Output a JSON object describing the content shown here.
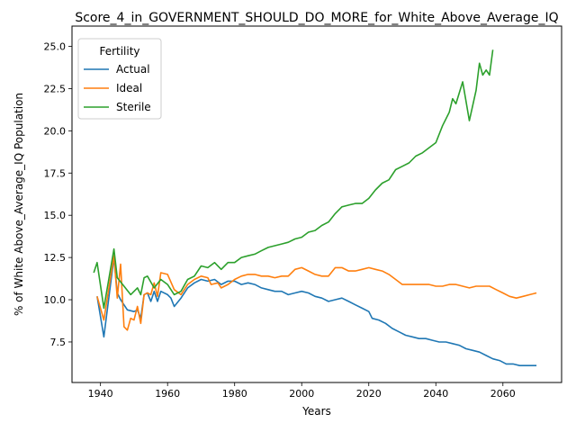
{
  "chart_data": {
    "type": "line",
    "title": "Score_4_in_GOVERNMENT_SHOULD_DO_MORE_for_White_Above_Average_IQ",
    "xlabel": "Years",
    "ylabel": "% of White Above_Average_IQ Population",
    "xlim": [
      1931.5,
      2077.5
    ],
    "ylim": [
      5.1,
      26.2
    ],
    "xticks": [
      1940,
      1960,
      1980,
      2000,
      2020,
      2040,
      2060
    ],
    "yticks": [
      7.5,
      10.0,
      12.5,
      15.0,
      17.5,
      20.0,
      22.5,
      25.0
    ],
    "xtick_labels": [
      "1940",
      "1960",
      "1980",
      "2000",
      "2020",
      "2040",
      "2060"
    ],
    "ytick_labels": [
      "7.5",
      "10.0",
      "12.5",
      "15.0",
      "17.5",
      "20.0",
      "22.5",
      "25.0"
    ],
    "grid": false,
    "legend": {
      "title": "Fertility",
      "placement": "upper-left"
    },
    "series": [
      {
        "name": "Actual",
        "color": "#1f77b4",
        "points": [
          [
            1939,
            10.2
          ],
          [
            1941,
            7.8
          ],
          [
            1944,
            12.5
          ],
          [
            1945,
            10.4
          ],
          [
            1946,
            10.0
          ],
          [
            1948,
            9.4
          ],
          [
            1950,
            9.3
          ],
          [
            1951,
            9.4
          ],
          [
            1952,
            8.9
          ],
          [
            1953,
            10.3
          ],
          [
            1954,
            10.4
          ],
          [
            1955,
            9.9
          ],
          [
            1956,
            10.5
          ],
          [
            1957,
            9.9
          ],
          [
            1958,
            10.5
          ],
          [
            1960,
            10.3
          ],
          [
            1961,
            10.1
          ],
          [
            1962,
            9.6
          ],
          [
            1964,
            10.1
          ],
          [
            1966,
            10.7
          ],
          [
            1968,
            11.0
          ],
          [
            1970,
            11.2
          ],
          [
            1972,
            11.1
          ],
          [
            1974,
            11.2
          ],
          [
            1976,
            10.9
          ],
          [
            1978,
            11.1
          ],
          [
            1980,
            11.1
          ],
          [
            1982,
            10.9
          ],
          [
            1984,
            11.0
          ],
          [
            1986,
            10.9
          ],
          [
            1988,
            10.7
          ],
          [
            1990,
            10.6
          ],
          [
            1992,
            10.5
          ],
          [
            1994,
            10.5
          ],
          [
            1996,
            10.3
          ],
          [
            1998,
            10.4
          ],
          [
            2000,
            10.5
          ],
          [
            2002,
            10.4
          ],
          [
            2004,
            10.2
          ],
          [
            2006,
            10.1
          ],
          [
            2008,
            9.9
          ],
          [
            2010,
            10.0
          ],
          [
            2012,
            10.1
          ],
          [
            2014,
            9.9
          ],
          [
            2016,
            9.7
          ],
          [
            2018,
            9.5
          ],
          [
            2020,
            9.3
          ],
          [
            2021,
            8.9
          ],
          [
            2023,
            8.8
          ],
          [
            2025,
            8.6
          ],
          [
            2027,
            8.3
          ],
          [
            2029,
            8.1
          ],
          [
            2031,
            7.9
          ],
          [
            2033,
            7.8
          ],
          [
            2035,
            7.7
          ],
          [
            2037,
            7.7
          ],
          [
            2039,
            7.6
          ],
          [
            2041,
            7.5
          ],
          [
            2043,
            7.5
          ],
          [
            2045,
            7.4
          ],
          [
            2047,
            7.3
          ],
          [
            2049,
            7.1
          ],
          [
            2051,
            7.0
          ],
          [
            2053,
            6.9
          ],
          [
            2055,
            6.7
          ],
          [
            2057,
            6.5
          ],
          [
            2059,
            6.4
          ],
          [
            2061,
            6.2
          ],
          [
            2063,
            6.2
          ],
          [
            2065,
            6.1
          ],
          [
            2067,
            6.1
          ],
          [
            2070,
            6.1
          ]
        ]
      },
      {
        "name": "Ideal",
        "color": "#ff7f0e",
        "points": [
          [
            1939,
            10.2
          ],
          [
            1941,
            8.8
          ],
          [
            1944,
            12.6
          ],
          [
            1945,
            10.1
          ],
          [
            1946,
            12.1
          ],
          [
            1947,
            8.4
          ],
          [
            1948,
            8.2
          ],
          [
            1949,
            8.9
          ],
          [
            1950,
            8.8
          ],
          [
            1951,
            9.6
          ],
          [
            1952,
            8.6
          ],
          [
            1953,
            10.3
          ],
          [
            1954,
            10.4
          ],
          [
            1955,
            10.3
          ],
          [
            1956,
            11.0
          ],
          [
            1957,
            10.2
          ],
          [
            1958,
            11.6
          ],
          [
            1960,
            11.5
          ],
          [
            1962,
            10.6
          ],
          [
            1964,
            10.3
          ],
          [
            1966,
            10.9
          ],
          [
            1968,
            11.2
          ],
          [
            1970,
            11.4
          ],
          [
            1972,
            11.3
          ],
          [
            1973,
            10.9
          ],
          [
            1975,
            11.0
          ],
          [
            1976,
            10.7
          ],
          [
            1978,
            10.9
          ],
          [
            1980,
            11.2
          ],
          [
            1982,
            11.4
          ],
          [
            1984,
            11.5
          ],
          [
            1986,
            11.5
          ],
          [
            1988,
            11.4
          ],
          [
            1990,
            11.4
          ],
          [
            1992,
            11.3
          ],
          [
            1994,
            11.4
          ],
          [
            1996,
            11.4
          ],
          [
            1998,
            11.8
          ],
          [
            2000,
            11.9
          ],
          [
            2002,
            11.7
          ],
          [
            2004,
            11.5
          ],
          [
            2006,
            11.4
          ],
          [
            2008,
            11.4
          ],
          [
            2010,
            11.9
          ],
          [
            2012,
            11.9
          ],
          [
            2014,
            11.7
          ],
          [
            2016,
            11.7
          ],
          [
            2018,
            11.8
          ],
          [
            2020,
            11.9
          ],
          [
            2022,
            11.8
          ],
          [
            2024,
            11.7
          ],
          [
            2026,
            11.5
          ],
          [
            2028,
            11.2
          ],
          [
            2030,
            10.9
          ],
          [
            2032,
            10.9
          ],
          [
            2034,
            10.9
          ],
          [
            2036,
            10.9
          ],
          [
            2038,
            10.9
          ],
          [
            2040,
            10.8
          ],
          [
            2042,
            10.8
          ],
          [
            2044,
            10.9
          ],
          [
            2046,
            10.9
          ],
          [
            2048,
            10.8
          ],
          [
            2050,
            10.7
          ],
          [
            2052,
            10.8
          ],
          [
            2054,
            10.8
          ],
          [
            2056,
            10.8
          ],
          [
            2058,
            10.6
          ],
          [
            2060,
            10.4
          ],
          [
            2062,
            10.2
          ],
          [
            2064,
            10.1
          ],
          [
            2066,
            10.2
          ],
          [
            2068,
            10.3
          ],
          [
            2070,
            10.4
          ]
        ]
      },
      {
        "name": "Sterile",
        "color": "#2ca02c",
        "points": [
          [
            1938,
            11.6
          ],
          [
            1939,
            12.2
          ],
          [
            1941,
            9.5
          ],
          [
            1944,
            13.0
          ],
          [
            1945,
            11.3
          ],
          [
            1947,
            10.8
          ],
          [
            1949,
            10.3
          ],
          [
            1951,
            10.7
          ],
          [
            1952,
            10.3
          ],
          [
            1953,
            11.3
          ],
          [
            1954,
            11.4
          ],
          [
            1956,
            10.7
          ],
          [
            1958,
            11.2
          ],
          [
            1960,
            10.9
          ],
          [
            1962,
            10.3
          ],
          [
            1964,
            10.5
          ],
          [
            1966,
            11.2
          ],
          [
            1968,
            11.4
          ],
          [
            1970,
            12.0
          ],
          [
            1972,
            11.9
          ],
          [
            1974,
            12.2
          ],
          [
            1976,
            11.8
          ],
          [
            1978,
            12.2
          ],
          [
            1980,
            12.2
          ],
          [
            1982,
            12.5
          ],
          [
            1984,
            12.6
          ],
          [
            1986,
            12.7
          ],
          [
            1988,
            12.9
          ],
          [
            1990,
            13.1
          ],
          [
            1992,
            13.2
          ],
          [
            1994,
            13.3
          ],
          [
            1996,
            13.4
          ],
          [
            1998,
            13.6
          ],
          [
            2000,
            13.7
          ],
          [
            2002,
            14.0
          ],
          [
            2004,
            14.1
          ],
          [
            2006,
            14.4
          ],
          [
            2008,
            14.6
          ],
          [
            2010,
            15.1
          ],
          [
            2012,
            15.5
          ],
          [
            2014,
            15.6
          ],
          [
            2016,
            15.7
          ],
          [
            2018,
            15.7
          ],
          [
            2020,
            16.0
          ],
          [
            2022,
            16.5
          ],
          [
            2024,
            16.9
          ],
          [
            2026,
            17.1
          ],
          [
            2028,
            17.7
          ],
          [
            2030,
            17.9
          ],
          [
            2032,
            18.1
          ],
          [
            2034,
            18.5
          ],
          [
            2036,
            18.7
          ],
          [
            2038,
            19.0
          ],
          [
            2040,
            19.3
          ],
          [
            2042,
            20.3
          ],
          [
            2044,
            21.1
          ],
          [
            2045,
            21.9
          ],
          [
            2046,
            21.6
          ],
          [
            2048,
            22.9
          ],
          [
            2050,
            20.6
          ],
          [
            2052,
            22.4
          ],
          [
            2053,
            24.0
          ],
          [
            2054,
            23.3
          ],
          [
            2055,
            23.6
          ],
          [
            2056,
            23.3
          ],
          [
            2057,
            24.8
          ]
        ]
      }
    ]
  }
}
